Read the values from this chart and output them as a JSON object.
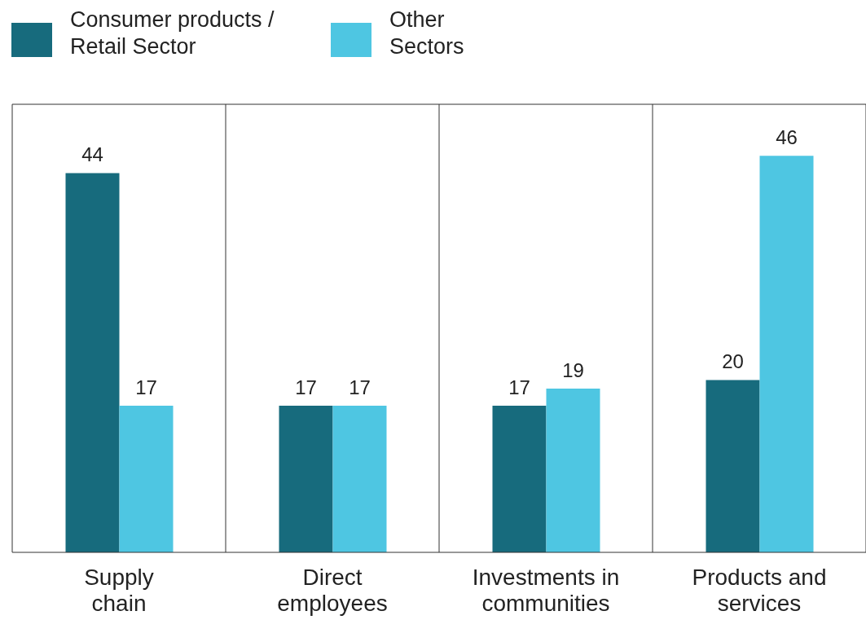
{
  "chart_data": {
    "type": "bar",
    "categories": [
      "Supply chain",
      "Direct employees",
      "Investments in communities",
      "Products and services"
    ],
    "series": [
      {
        "name": "Consumer products / Retail Sector",
        "color": "#176b7d",
        "values": [
          44,
          17,
          17,
          20
        ]
      },
      {
        "name": "Other Sectors",
        "color": "#4ec6e2",
        "values": [
          17,
          17,
          19,
          46
        ]
      }
    ],
    "data_labels": true,
    "grid": "x",
    "legend": "top left"
  }
}
